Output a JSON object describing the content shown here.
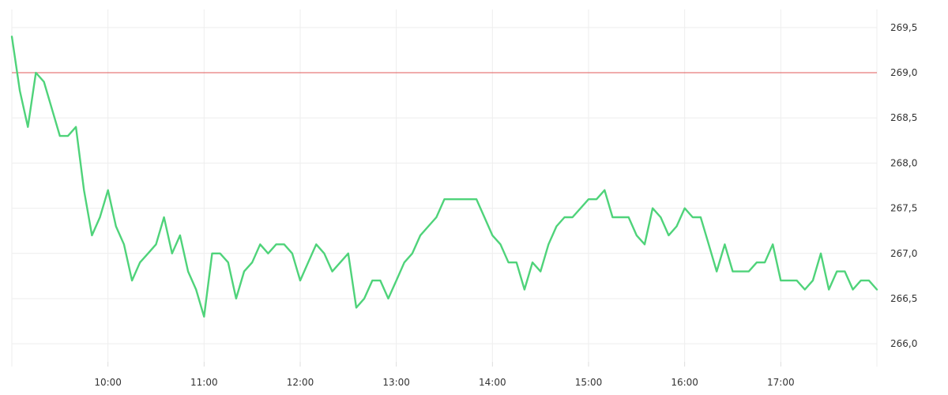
{
  "chart_data": {
    "type": "line",
    "title": "",
    "xlabel": "",
    "ylabel": "",
    "x_range": [
      "09:00",
      "18:00"
    ],
    "ylim": [
      265.8,
      269.7
    ],
    "grid": true,
    "y_axis_position": "right",
    "x_ticks": [
      "10:00",
      "11:00",
      "12:00",
      "13:00",
      "14:00",
      "15:00",
      "16:00",
      "17:00"
    ],
    "y_ticks": [
      "266,0",
      "266,5",
      "267,0",
      "267,5",
      "268,0",
      "268,5",
      "269,0",
      "269,5"
    ],
    "y_tick_values": [
      266.0,
      266.5,
      267.0,
      267.5,
      268.0,
      268.5,
      269.0,
      269.5
    ],
    "reference_line": {
      "value": 269.0,
      "color": "#e05a5a"
    },
    "series": [
      {
        "color": "#4fd37a",
        "points": [
          [
            "09:00",
            269.4
          ],
          [
            "09:05",
            268.8
          ],
          [
            "09:10",
            268.4
          ],
          [
            "09:15",
            269.0
          ],
          [
            "09:20",
            268.9
          ],
          [
            "09:25",
            268.6
          ],
          [
            "09:30",
            268.3
          ],
          [
            "09:35",
            268.3
          ],
          [
            "09:40",
            268.4
          ],
          [
            "09:45",
            267.7
          ],
          [
            "09:50",
            267.2
          ],
          [
            "09:55",
            267.4
          ],
          [
            "10:00",
            267.7
          ],
          [
            "10:05",
            267.3
          ],
          [
            "10:10",
            267.1
          ],
          [
            "10:15",
            266.7
          ],
          [
            "10:20",
            266.9
          ],
          [
            "10:25",
            267.0
          ],
          [
            "10:30",
            267.1
          ],
          [
            "10:35",
            267.4
          ],
          [
            "10:40",
            267.0
          ],
          [
            "10:45",
            267.2
          ],
          [
            "10:50",
            266.8
          ],
          [
            "10:55",
            266.6
          ],
          [
            "11:00",
            266.3
          ],
          [
            "11:05",
            267.0
          ],
          [
            "11:10",
            267.0
          ],
          [
            "11:15",
            266.9
          ],
          [
            "11:20",
            266.5
          ],
          [
            "11:25",
            266.8
          ],
          [
            "11:30",
            266.9
          ],
          [
            "11:35",
            267.1
          ],
          [
            "11:40",
            267.0
          ],
          [
            "11:45",
            267.1
          ],
          [
            "11:50",
            267.1
          ],
          [
            "11:55",
            267.0
          ],
          [
            "12:00",
            266.7
          ],
          [
            "12:05",
            266.9
          ],
          [
            "12:10",
            267.1
          ],
          [
            "12:15",
            267.0
          ],
          [
            "12:20",
            266.8
          ],
          [
            "12:25",
            266.9
          ],
          [
            "12:30",
            267.0
          ],
          [
            "12:35",
            266.4
          ],
          [
            "12:40",
            266.5
          ],
          [
            "12:45",
            266.7
          ],
          [
            "12:50",
            266.7
          ],
          [
            "12:55",
            266.5
          ],
          [
            "13:00",
            266.7
          ],
          [
            "13:05",
            266.9
          ],
          [
            "13:10",
            267.0
          ],
          [
            "13:15",
            267.2
          ],
          [
            "13:20",
            267.3
          ],
          [
            "13:25",
            267.4
          ],
          [
            "13:30",
            267.6
          ],
          [
            "13:35",
            267.6
          ],
          [
            "13:40",
            267.6
          ],
          [
            "13:45",
            267.6
          ],
          [
            "13:50",
            267.6
          ],
          [
            "13:55",
            267.4
          ],
          [
            "14:00",
            267.2
          ],
          [
            "14:05",
            267.1
          ],
          [
            "14:10",
            266.9
          ],
          [
            "14:15",
            266.9
          ],
          [
            "14:20",
            266.6
          ],
          [
            "14:25",
            266.9
          ],
          [
            "14:30",
            266.8
          ],
          [
            "14:35",
            267.1
          ],
          [
            "14:40",
            267.3
          ],
          [
            "14:45",
            267.4
          ],
          [
            "14:50",
            267.4
          ],
          [
            "14:55",
            267.5
          ],
          [
            "15:00",
            267.6
          ],
          [
            "15:05",
            267.6
          ],
          [
            "15:10",
            267.7
          ],
          [
            "15:15",
            267.4
          ],
          [
            "15:20",
            267.4
          ],
          [
            "15:25",
            267.4
          ],
          [
            "15:30",
            267.2
          ],
          [
            "15:35",
            267.1
          ],
          [
            "15:40",
            267.5
          ],
          [
            "15:45",
            267.4
          ],
          [
            "15:50",
            267.2
          ],
          [
            "15:55",
            267.3
          ],
          [
            "16:00",
            267.5
          ],
          [
            "16:05",
            267.4
          ],
          [
            "16:10",
            267.4
          ],
          [
            "16:15",
            267.1
          ],
          [
            "16:20",
            266.8
          ],
          [
            "16:25",
            267.1
          ],
          [
            "16:30",
            266.8
          ],
          [
            "16:35",
            266.8
          ],
          [
            "16:40",
            266.8
          ],
          [
            "16:45",
            266.9
          ],
          [
            "16:50",
            266.9
          ],
          [
            "16:55",
            267.1
          ],
          [
            "17:00",
            266.7
          ],
          [
            "17:05",
            266.7
          ],
          [
            "17:10",
            266.7
          ],
          [
            "17:15",
            266.6
          ],
          [
            "17:20",
            266.7
          ],
          [
            "17:25",
            267.0
          ],
          [
            "17:30",
            266.6
          ],
          [
            "17:35",
            266.8
          ],
          [
            "17:40",
            266.8
          ],
          [
            "17:45",
            266.6
          ],
          [
            "17:50",
            266.7
          ],
          [
            "17:55",
            266.7
          ],
          [
            "18:00",
            266.6
          ]
        ]
      }
    ]
  }
}
